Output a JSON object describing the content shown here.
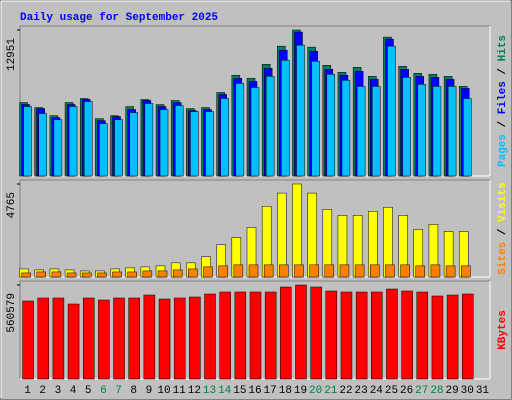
{
  "chart_data": [
    {
      "type": "bar",
      "title": "Daily usage for September 2025",
      "ylim": [
        0,
        12951
      ],
      "yticks": [
        12951
      ],
      "legend_separator": " / ",
      "series": [
        {
          "name": "Hits",
          "color": "#00805c",
          "values": [
            6519,
            6072,
            5358,
            6519,
            6876,
            5090,
            5358,
            6162,
            6787,
            6340,
            6698,
            5983,
            6072,
            7412,
            8930,
            8662,
            9912,
            11520,
            12951,
            11430,
            9823,
            9198,
            9644,
            8841,
            12323,
            9734,
            9109,
            9019,
            8841,
            7948,
            null
          ]
        },
        {
          "name": "Files",
          "color": "#0000ff",
          "values": [
            6340,
            5983,
            5179,
            6340,
            6787,
            4912,
            5269,
            5894,
            6698,
            6162,
            6519,
            5805,
            5894,
            7233,
            8662,
            8394,
            9555,
            11163,
            12770,
            11073,
            9466,
            8930,
            9287,
            8573,
            12145,
            9466,
            8841,
            8751,
            8573,
            7769,
            null
          ]
        },
        {
          "name": "Pages",
          "color": "#00c0ff",
          "values": [
            6162,
            5537,
            5001,
            6162,
            6608,
            4644,
            5001,
            5626,
            6430,
            5894,
            6251,
            5715,
            5715,
            6876,
            8216,
            7858,
            8841,
            10270,
            11609,
            10180,
            9019,
            8484,
            7948,
            7948,
            11520,
            8751,
            8126,
            7948,
            7948,
            6876,
            null
          ]
        }
      ]
    },
    {
      "type": "bar",
      "ylim": [
        0,
        4765
      ],
      "yticks": [
        4765
      ],
      "legend_separator": " / ",
      "series": [
        {
          "name": "Visits",
          "color": "#ffff00",
          "values": [
            414,
            363,
            414,
            363,
            311,
            311,
            414,
            466,
            518,
            570,
            725,
            725,
            1036,
            1658,
            2020,
            2538,
            3626,
            4299,
            4765,
            4299,
            3471,
            3160,
            3160,
            3367,
            3574,
            3160,
            2435,
            2694,
            2331,
            2331,
            null
          ]
        },
        {
          "name": "Sites",
          "color": "#ff8000",
          "values": [
            207,
            259,
            259,
            207,
            207,
            207,
            259,
            259,
            311,
            311,
            363,
            414,
            518,
            570,
            622,
            622,
            622,
            622,
            622,
            622,
            622,
            622,
            622,
            622,
            622,
            622,
            570,
            622,
            570,
            570,
            null
          ]
        }
      ]
    },
    {
      "type": "bar",
      "ylim": [
        0,
        560579
      ],
      "yticks": [
        560579
      ],
      "categories": [
        "1",
        "2",
        "3",
        "4",
        "5",
        "6",
        "7",
        "8",
        "9",
        "10",
        "11",
        "12",
        "13",
        "14",
        "15",
        "16",
        "17",
        "18",
        "19",
        "20",
        "21",
        "22",
        "23",
        "24",
        "25",
        "26",
        "27",
        "28",
        "29",
        "30",
        "31"
      ],
      "category_colors": [
        "#000000",
        "#000000",
        "#000000",
        "#000000",
        "#000000",
        "#008040",
        "#008040",
        "#000000",
        "#000000",
        "#000000",
        "#000000",
        "#000000",
        "#008040",
        "#008040",
        "#000000",
        "#000000",
        "#000000",
        "#000000",
        "#000000",
        "#008040",
        "#008040",
        "#000000",
        "#000000",
        "#000000",
        "#000000",
        "#000000",
        "#008040",
        "#008040",
        "#000000",
        "#000000",
        "#000000"
      ],
      "series": [
        {
          "name": "KBytes",
          "color": "#ff0000",
          "values": [
            465160,
            483052,
            483052,
            447271,
            483052,
            471124,
            483052,
            483052,
            500943,
            477088,
            483052,
            489015,
            506907,
            518834,
            518834,
            518834,
            518834,
            548652,
            560579,
            548652,
            524798,
            518834,
            518834,
            518834,
            536725,
            524798,
            518834,
            494979,
            500943,
            506907,
            null
          ]
        }
      ]
    }
  ]
}
